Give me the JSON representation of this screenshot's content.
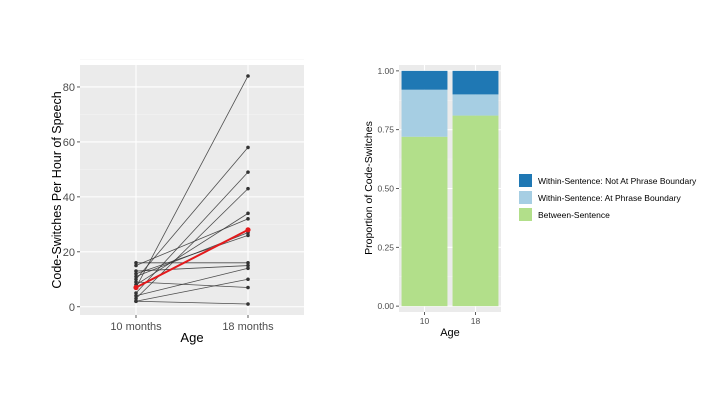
{
  "colors": {
    "panel_bg": "#ebebeb",
    "grid_major": "#ffffff",
    "grid_minor": "#f4f4f4",
    "subject_line": "#333333",
    "mean_line": "#e31a1c",
    "tick_text": "#4d4d4d",
    "label_text": "#000000"
  },
  "chart_data": [
    {
      "type": "line",
      "xlabel": "Age",
      "ylabel": "Code-Switches Per Hour of Speech",
      "categories": [
        "10 months",
        "18 months"
      ],
      "ylim": [
        -3,
        88
      ],
      "yticks": [
        0,
        20,
        40,
        60,
        80
      ],
      "grid": true,
      "series": [
        {
          "values": [
            7,
            84
          ]
        },
        {
          "values": [
            10,
            58
          ]
        },
        {
          "values": [
            5,
            49
          ]
        },
        {
          "values": [
            3,
            43
          ]
        },
        {
          "values": [
            8,
            34
          ]
        },
        {
          "values": [
            15,
            32
          ]
        },
        {
          "values": [
            11,
            27
          ]
        },
        {
          "values": [
            12,
            26
          ]
        },
        {
          "values": [
            16,
            16
          ]
        },
        {
          "values": [
            13,
            15
          ]
        },
        {
          "values": [
            4,
            14
          ]
        },
        {
          "values": [
            2,
            10
          ]
        },
        {
          "values": [
            9,
            7
          ]
        },
        {
          "values": [
            2,
            1
          ]
        }
      ],
      "mean": {
        "values": [
          7,
          28
        ]
      }
    },
    {
      "type": "bar",
      "stacked": true,
      "xlabel": "Age",
      "ylabel": "Proportion of Code-Switches",
      "categories": [
        "10",
        "18"
      ],
      "ylim": [
        -0.025,
        1.025
      ],
      "yticks": [
        "0.00",
        "0.25",
        "0.50",
        "0.75",
        "1.00"
      ],
      "grid": true,
      "legend_position": "right",
      "series": [
        {
          "name": "Between-Sentence",
          "color": "#b2df8a",
          "values": [
            0.72,
            0.81
          ]
        },
        {
          "name": "Within-Sentence: At Phrase Boundary",
          "color": "#a6cee3",
          "values": [
            0.2,
            0.09
          ]
        },
        {
          "name": "Within-Sentence: Not At Phrase Boundary",
          "color": "#1f78b4",
          "values": [
            0.08,
            0.1
          ]
        }
      ],
      "legend_order": [
        "Within-Sentence: Not At Phrase Boundary",
        "Within-Sentence: At Phrase Boundary",
        "Between-Sentence"
      ]
    }
  ]
}
